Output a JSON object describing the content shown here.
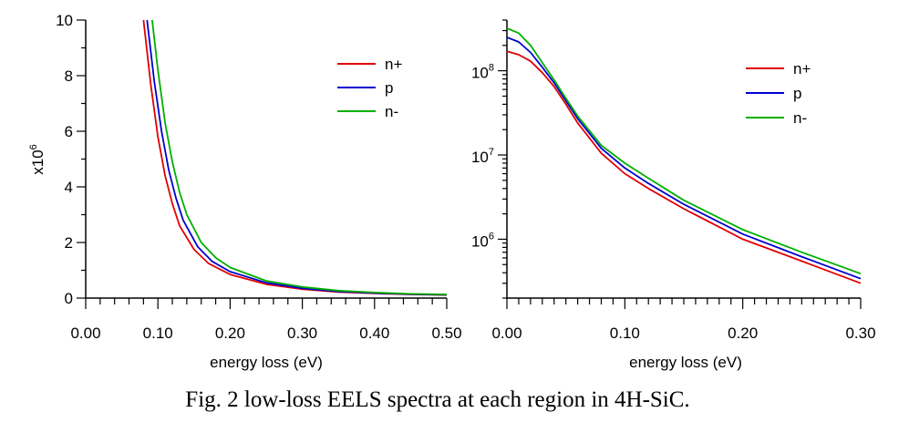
{
  "caption": "Fig. 2  low-loss EELS spectra at each region in 4H-SiC.",
  "colors": {
    "n_plus": "#e00000",
    "p": "#0000d0",
    "n_minus": "#00b000",
    "axis": "#000000"
  },
  "chart_data": [
    {
      "type": "line",
      "xlabel": "energy loss (eV)",
      "ylabel_base": "x10",
      "ylabel_exp": "6",
      "xlim": [
        0,
        0.5
      ],
      "ylim": [
        0,
        10
      ],
      "xticks": [
        "0.00",
        "0.10",
        "0.20",
        "0.30",
        "0.40",
        "0.50"
      ],
      "xtick_values": [
        0,
        0.1,
        0.2,
        0.3,
        0.4,
        0.5
      ],
      "yticks": [
        "0",
        "2",
        "4",
        "6",
        "8",
        "10"
      ],
      "ytick_values": [
        0,
        2,
        4,
        6,
        8,
        10
      ],
      "legend_position": "top-right",
      "series": [
        {
          "name": "n+",
          "color": "#e00000",
          "x": [
            0.08,
            0.09,
            0.1,
            0.11,
            0.12,
            0.13,
            0.15,
            0.17,
            0.2,
            0.25,
            0.3,
            0.35,
            0.4,
            0.45,
            0.5
          ],
          "y": [
            10.0,
            7.7,
            5.8,
            4.4,
            3.4,
            2.6,
            1.75,
            1.25,
            0.85,
            0.5,
            0.32,
            0.22,
            0.17,
            0.13,
            0.11
          ]
        },
        {
          "name": "p",
          "color": "#0000d0",
          "x": [
            0.085,
            0.095,
            0.105,
            0.115,
            0.125,
            0.135,
            0.155,
            0.175,
            0.2,
            0.25,
            0.3,
            0.35,
            0.4,
            0.45,
            0.5
          ],
          "y": [
            10.0,
            7.8,
            6.0,
            4.6,
            3.6,
            2.8,
            1.85,
            1.32,
            0.95,
            0.55,
            0.35,
            0.24,
            0.18,
            0.14,
            0.12
          ]
        },
        {
          "name": "n-",
          "color": "#00b000",
          "x": [
            0.092,
            0.1,
            0.11,
            0.12,
            0.13,
            0.14,
            0.16,
            0.18,
            0.2,
            0.25,
            0.3,
            0.35,
            0.4,
            0.45,
            0.5
          ],
          "y": [
            10.0,
            8.2,
            6.3,
            4.9,
            3.8,
            3.0,
            2.0,
            1.45,
            1.1,
            0.62,
            0.4,
            0.27,
            0.2,
            0.15,
            0.13
          ]
        }
      ]
    },
    {
      "type": "line",
      "xlabel": "energy loss (eV)",
      "yscale": "log",
      "xlim": [
        0,
        0.3
      ],
      "ylim": [
        200000,
        400000000
      ],
      "xticks": [
        "0.00",
        "0.10",
        "0.20",
        "0.30"
      ],
      "xtick_values": [
        0,
        0.1,
        0.2,
        0.3
      ],
      "ytick_base": "10",
      "ytick_exps": [
        "6",
        "7",
        "8"
      ],
      "ytick_values": [
        1000000,
        10000000,
        100000000
      ],
      "legend_position": "top-right",
      "series": [
        {
          "name": "n+",
          "color": "#e00000",
          "x": [
            0.0,
            0.01,
            0.02,
            0.03,
            0.04,
            0.05,
            0.06,
            0.08,
            0.1,
            0.12,
            0.15,
            0.2,
            0.25,
            0.3
          ],
          "y": [
            170000000,
            155000000,
            130000000,
            95000000,
            65000000,
            40000000,
            24000000,
            10500000,
            6000000,
            4000000,
            2300000,
            1000000,
            550000,
            300000
          ]
        },
        {
          "name": "p",
          "color": "#0000d0",
          "x": [
            0.0,
            0.01,
            0.02,
            0.03,
            0.04,
            0.05,
            0.06,
            0.08,
            0.1,
            0.12,
            0.15,
            0.2,
            0.25,
            0.3
          ],
          "y": [
            250000000,
            220000000,
            165000000,
            110000000,
            72000000,
            44000000,
            27000000,
            12000000,
            7000000,
            4600000,
            2600000,
            1150000,
            620000,
            340000
          ]
        },
        {
          "name": "n-",
          "color": "#00b000",
          "x": [
            0.0,
            0.01,
            0.02,
            0.03,
            0.04,
            0.05,
            0.06,
            0.08,
            0.1,
            0.12,
            0.15,
            0.2,
            0.25,
            0.3
          ],
          "y": [
            320000000,
            280000000,
            200000000,
            125000000,
            78000000,
            47000000,
            29000000,
            13000000,
            8000000,
            5300000,
            2900000,
            1300000,
            700000,
            390000
          ]
        }
      ]
    }
  ]
}
